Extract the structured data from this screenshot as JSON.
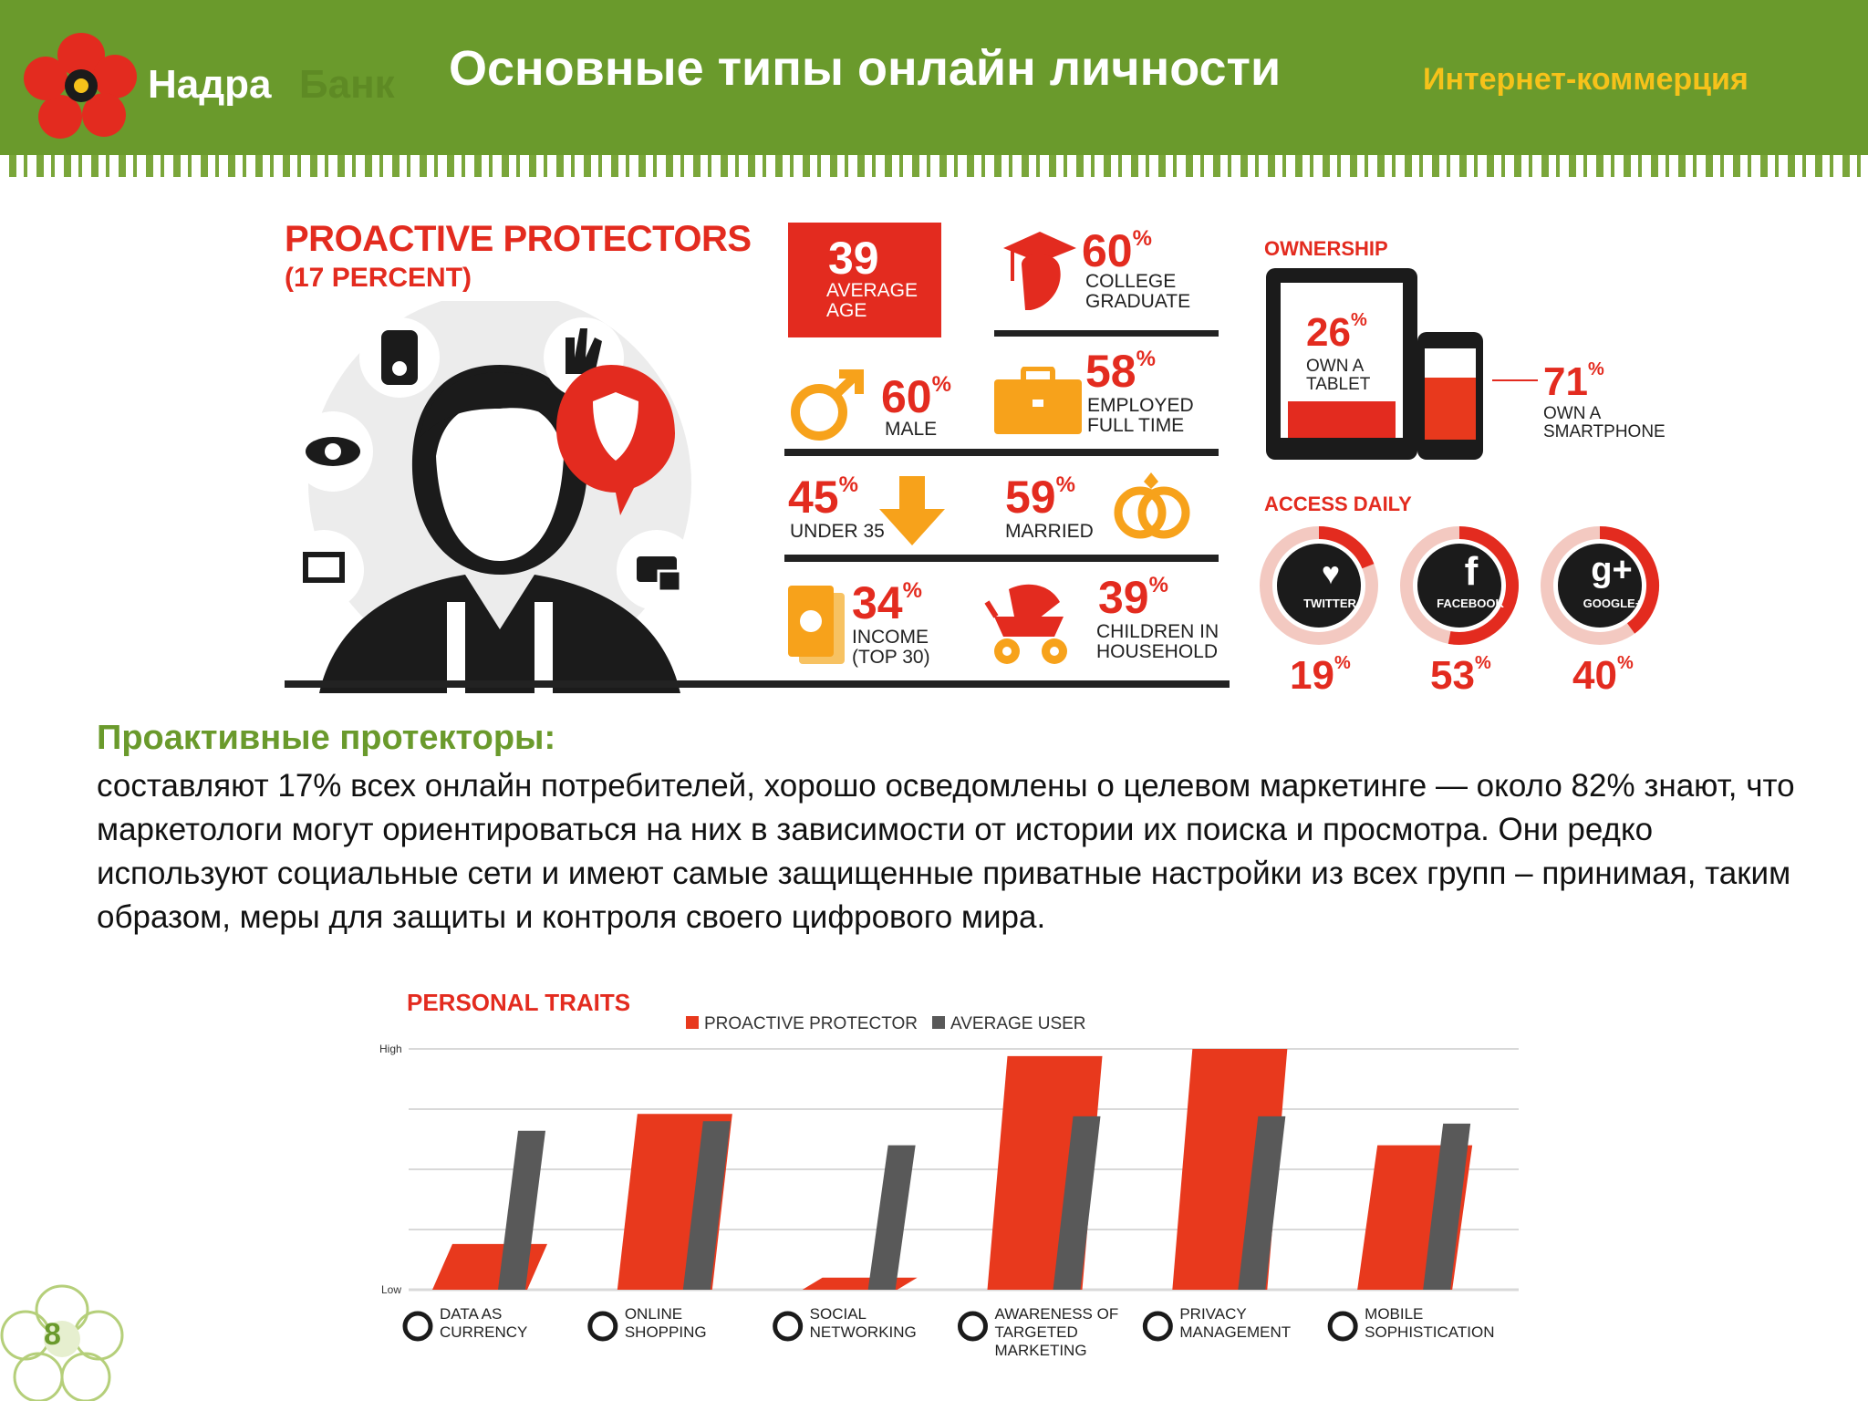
{
  "header": {
    "brand_name": "Надра",
    "brand_sub": "Банк",
    "title": "Основные типы онлайн личности",
    "category": "Интернет-коммерция"
  },
  "infographic": {
    "title": "PROACTIVE PROTECTORS",
    "subtitle": "(17 PERCENT)",
    "stats": [
      {
        "value": "39",
        "label": "AVERAGE AGE"
      },
      {
        "value": "60",
        "label": "COLLEGE GRADUATE"
      },
      {
        "value": "60",
        "label": "MALE"
      },
      {
        "value": "58",
        "label": "EMPLOYED FULL TIME"
      },
      {
        "value": "45",
        "label": "UNDER 35"
      },
      {
        "value": "59",
        "label": "MARRIED"
      },
      {
        "value": "34",
        "label": "INCOME (TOP 30)"
      },
      {
        "value": "39",
        "label": "CHILDREN IN HOUSEHOLD"
      }
    ],
    "ownership": {
      "title": "OWNERSHIP",
      "tablet_value": "26",
      "tablet_label": "OWN A TABLET",
      "phone_value": "71",
      "phone_label": "OWN A SMARTPHONE"
    },
    "access_daily": {
      "title": "ACCESS DAILY",
      "items": [
        {
          "name": "TWITTER",
          "value": "19",
          "fraction": 0.19
        },
        {
          "name": "FACEBOOK",
          "value": "53",
          "fraction": 0.53
        },
        {
          "name": "GOOGLE+",
          "value": "40",
          "fraction": 0.4
        }
      ]
    },
    "percent_sign": "%"
  },
  "description": {
    "heading": "Проактивные протекторы:",
    "text": "составляют 17% всех онлайн потребителей, хорошо осведомлены о целевом маркетинге — около 82% знают, что маркетологи могут ориентироваться на них в зависимости от истории их поиска и просмотра. Они редко используют социальные сети и имеют самые защищенные приватные настройки из всех групп  – принимая, таким образом, меры для защиты и контроля своего цифрового мира."
  },
  "chart_data": {
    "type": "bar",
    "title": "PERSONAL TRAITS",
    "y_axis_labels": {
      "high": "High",
      "low": "Low"
    },
    "ylim": [
      0,
      1
    ],
    "categories": [
      "DATA AS CURRENCY",
      "ONLINE SHOPPING",
      "SOCIAL NETWORKING",
      "AWARENESS OF TARGETED MARKETING",
      "PRIVACY MANAGEMENT",
      "MOBILE SOPHISTICATION"
    ],
    "series": [
      {
        "name": "PROACTIVE PROTECTOR",
        "color": "#e8391d",
        "values": [
          0.19,
          0.73,
          0.05,
          0.97,
          1.0,
          0.6
        ]
      },
      {
        "name": "AVERAGE USER",
        "color": "#595959",
        "values": [
          0.66,
          0.7,
          0.6,
          0.72,
          0.72,
          0.69
        ]
      }
    ],
    "legend_position": "top",
    "grid": true
  },
  "footer": {
    "page_number": "8"
  },
  "colors": {
    "brand_green": "#6a9a2c",
    "accent_red": "#e32b1f",
    "accent_yellow": "#f6c21a",
    "accent_orange": "#f7a21b"
  }
}
